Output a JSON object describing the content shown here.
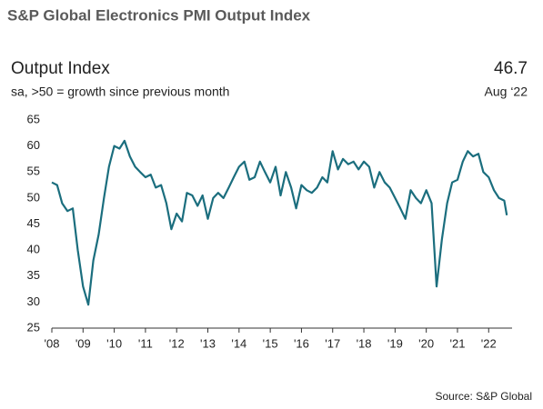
{
  "chart_data": {
    "type": "line",
    "title": "S&P Global Electronics PMI Output Index",
    "subtitle": "Output Index",
    "note": "sa, >50 = growth since previous month",
    "latest_value": 46.7,
    "latest_label": "Aug ‘22",
    "source": "Source: S&P Global",
    "x": [
      2008.0,
      2008.17,
      2008.33,
      2008.5,
      2008.67,
      2008.83,
      2009.0,
      2009.17,
      2009.33,
      2009.5,
      2009.67,
      2009.83,
      2010.0,
      2010.17,
      2010.33,
      2010.5,
      2010.67,
      2010.83,
      2011.0,
      2011.17,
      2011.33,
      2011.5,
      2011.67,
      2011.83,
      2012.0,
      2012.17,
      2012.33,
      2012.5,
      2012.67,
      2012.83,
      2013.0,
      2013.17,
      2013.33,
      2013.5,
      2013.67,
      2013.83,
      2014.0,
      2014.17,
      2014.33,
      2014.5,
      2014.67,
      2014.83,
      2015.0,
      2015.17,
      2015.33,
      2015.5,
      2015.67,
      2015.83,
      2016.0,
      2016.17,
      2016.33,
      2016.5,
      2016.67,
      2016.83,
      2017.0,
      2017.17,
      2017.33,
      2017.5,
      2017.67,
      2017.83,
      2018.0,
      2018.17,
      2018.33,
      2018.5,
      2018.67,
      2018.83,
      2019.0,
      2019.17,
      2019.33,
      2019.5,
      2019.67,
      2019.83,
      2020.0,
      2020.17,
      2020.33,
      2020.5,
      2020.67,
      2020.83,
      2021.0,
      2021.17,
      2021.33,
      2021.5,
      2021.67,
      2021.83,
      2022.0,
      2022.17,
      2022.33,
      2022.5,
      2022.58
    ],
    "series": [
      {
        "name": "Output Index",
        "color": "#1b6e7e",
        "values": [
          53,
          52.5,
          49,
          47.5,
          48,
          40,
          33,
          29.5,
          38,
          43,
          50,
          56,
          60,
          59.5,
          61,
          58,
          56,
          55,
          54,
          54.5,
          52,
          52.5,
          49,
          44,
          47,
          45.5,
          51,
          50.5,
          48.5,
          50.5,
          46,
          50,
          51,
          50,
          52,
          54,
          56,
          57,
          53.5,
          54,
          57,
          55,
          53,
          56,
          50.5,
          55,
          52,
          48,
          52.5,
          51.5,
          51,
          52,
          54,
          53,
          59,
          55.5,
          57.5,
          56.5,
          57,
          55.5,
          57,
          56,
          52,
          55,
          53,
          52,
          50,
          48,
          46,
          51.5,
          50,
          49,
          51.5,
          49,
          33,
          42,
          49,
          53,
          53.5,
          57,
          59,
          58,
          58.5,
          55,
          54,
          51.5,
          50,
          49.5,
          46.7
        ]
      }
    ],
    "xlim": [
      2008,
      2022.75
    ],
    "xticks": [
      {
        "value": 2008,
        "label": "'08"
      },
      {
        "value": 2009,
        "label": "'09"
      },
      {
        "value": 2010,
        "label": "'10"
      },
      {
        "value": 2011,
        "label": "'11"
      },
      {
        "value": 2012,
        "label": "'12"
      },
      {
        "value": 2013,
        "label": "'13"
      },
      {
        "value": 2014,
        "label": "'14"
      },
      {
        "value": 2015,
        "label": "'15"
      },
      {
        "value": 2016,
        "label": "'16"
      },
      {
        "value": 2017,
        "label": "'17"
      },
      {
        "value": 2018,
        "label": "'18"
      },
      {
        "value": 2019,
        "label": "'19"
      },
      {
        "value": 2020,
        "label": "'20"
      },
      {
        "value": 2021,
        "label": "'21"
      },
      {
        "value": 2022,
        "label": "'22"
      }
    ],
    "ylim": [
      25,
      65
    ],
    "yticks": [
      25,
      30,
      35,
      40,
      45,
      50,
      55,
      60,
      65
    ],
    "grid": false
  }
}
